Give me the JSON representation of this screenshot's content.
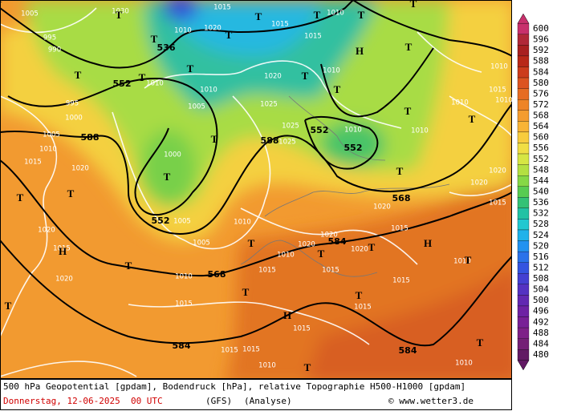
{
  "colorbar": {
    "ticks": [
      600,
      596,
      592,
      588,
      584,
      580,
      576,
      572,
      568,
      564,
      560,
      556,
      552,
      548,
      544,
      540,
      536,
      532,
      528,
      524,
      520,
      516,
      512,
      508,
      504,
      500,
      496,
      492,
      488,
      484,
      480
    ],
    "colors": [
      "#c8306c",
      "#b02838",
      "#a82020",
      "#b82818",
      "#cc3c1c",
      "#dc5420",
      "#e66c22",
      "#ee8426",
      "#f49c2e",
      "#f8b436",
      "#f8cc3e",
      "#f0de44",
      "#d6e644",
      "#b4e042",
      "#86d846",
      "#58cc52",
      "#34c276",
      "#22c2a4",
      "#22c8d0",
      "#20b2ea",
      "#2292f0",
      "#2a72ea",
      "#3454e0",
      "#4440d2",
      "#5432c2",
      "#6228b2",
      "#6e22a4",
      "#782096",
      "#7e2088",
      "#742076",
      "#621a64"
    ]
  },
  "map_labels": [
    "536",
    "552",
    "588",
    "552",
    "588",
    "552",
    "552",
    "568",
    "584",
    "568",
    "584",
    "584",
    "1005",
    "995",
    "990",
    "1010",
    "1020",
    "1015",
    "1015",
    "1010",
    "1015",
    "1010",
    "1010",
    "1005",
    "1020",
    "1025",
    "1025",
    "1025",
    "1010",
    "1010",
    "1000",
    "1005",
    "1005",
    "1010",
    "1010",
    "1015",
    "1010",
    "1020",
    "1020",
    "1015",
    "1015",
    "1015",
    "1015",
    "1015",
    "1015",
    "1015",
    "1015",
    "1010",
    "1010",
    "1010",
    "1010",
    "1015",
    "1010",
    "1020",
    "1020",
    "1015",
    "1010",
    "1000",
    "995",
    "1005",
    "1010",
    "1015",
    "1020",
    "1020",
    "1015",
    "1020",
    "1030",
    "1010",
    "1020",
    "1020",
    "T",
    "T",
    "T",
    "T",
    "T",
    "T",
    "T",
    "H",
    "T",
    "T",
    "T",
    "T",
    "T",
    "T",
    "T",
    "T",
    "T",
    "T",
    "T",
    "T",
    "T",
    "H",
    "T",
    "T",
    "T",
    "T",
    "H",
    "T",
    "T",
    "T",
    "H",
    "T",
    "T",
    "T",
    "T"
  ],
  "footer": {
    "line1": "500 hPa Geopotential [gpdam], Bodendruck [hPa], relative Topographie H500-H1000 [gpdam]",
    "date": "Donnerstag, 12-06-2025  00 UTC",
    "model": "(GFS)",
    "run": "(Analyse)",
    "credit": "© www.wetter3.de"
  }
}
